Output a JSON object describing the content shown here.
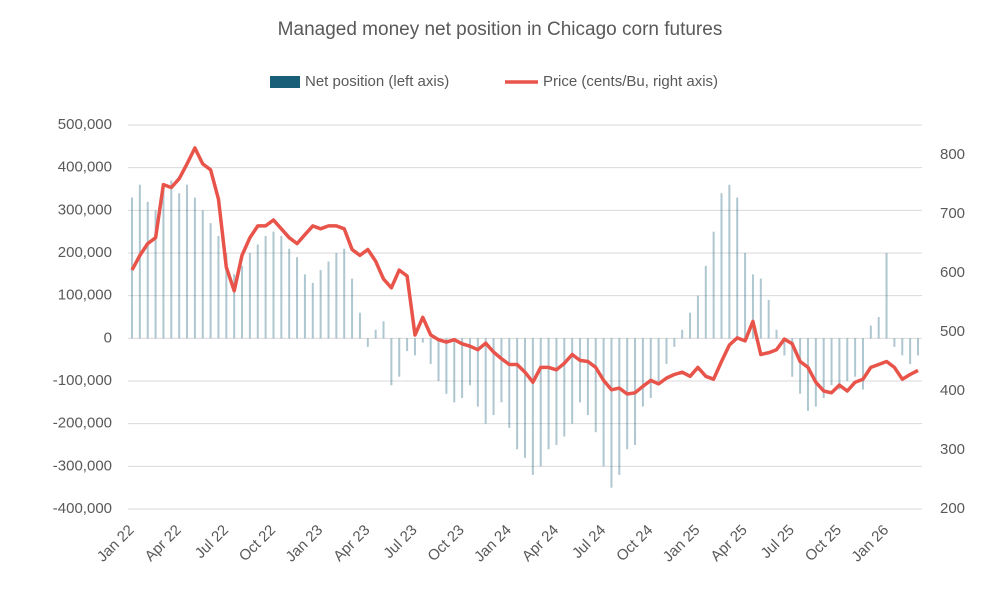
{
  "chart_data": {
    "type": "bar-line",
    "title": "Managed money net position in Chicago corn futures",
    "categories": [
      "Jan 22",
      null,
      null,
      null,
      null,
      null,
      "Apr 22",
      null,
      null,
      null,
      null,
      null,
      "Jul 22",
      null,
      null,
      null,
      null,
      null,
      "Oct 22",
      null,
      null,
      null,
      null,
      null,
      "Jan 23",
      null,
      null,
      null,
      null,
      null,
      "Apr 23",
      null,
      null,
      null,
      null,
      null,
      "Jul 23",
      null,
      null,
      null,
      null,
      null,
      "Oct 23",
      null,
      null,
      null,
      null,
      null,
      "Jan 24",
      null,
      null,
      null,
      null,
      null,
      "Apr 24",
      null,
      null,
      null,
      null,
      null,
      "Jul 24",
      null,
      null,
      null,
      null,
      null,
      "Oct 24",
      null,
      null,
      null,
      null,
      null,
      "Jan 25",
      null,
      null,
      null,
      null,
      null,
      "Apr 25",
      null,
      null,
      null,
      null,
      null,
      "Jul 25",
      null,
      null,
      null,
      null,
      null,
      "Oct 25",
      null,
      null,
      null,
      null,
      null,
      "Jan 26",
      null,
      null,
      null,
      null
    ],
    "series": [
      {
        "name": "Net position (left axis)",
        "color": "#1a5f78",
        "type": "bar",
        "values": [
          330000,
          360000,
          320000,
          300000,
          350000,
          370000,
          340000,
          360000,
          330000,
          300000,
          270000,
          240000,
          200000,
          150000,
          170000,
          200000,
          220000,
          240000,
          250000,
          240000,
          210000,
          190000,
          150000,
          130000,
          160000,
          180000,
          200000,
          210000,
          140000,
          60000,
          -20000,
          20000,
          40000,
          -110000,
          -90000,
          -30000,
          -40000,
          -10000,
          -60000,
          -100000,
          -130000,
          -150000,
          -140000,
          -110000,
          -160000,
          -200000,
          -180000,
          -150000,
          -210000,
          -260000,
          -280000,
          -320000,
          -300000,
          -260000,
          -250000,
          -230000,
          -200000,
          -150000,
          -180000,
          -220000,
          -300000,
          -350000,
          -320000,
          -260000,
          -250000,
          -160000,
          -140000,
          -100000,
          -60000,
          -20000,
          20000,
          60000,
          100000,
          170000,
          250000,
          340000,
          360000,
          330000,
          200000,
          150000,
          140000,
          90000,
          20000,
          -40000,
          -90000,
          -130000,
          -170000,
          -160000,
          -140000,
          -110000,
          -120000,
          -100000,
          -90000,
          -120000,
          30000,
          50000,
          200000,
          -20000,
          -40000,
          -60000,
          -40000
        ]
      },
      {
        "name": "Price (cents/Bu, right axis)",
        "color": "#e8534a",
        "type": "line",
        "axis": "y2",
        "values": [
          605,
          630,
          650,
          660,
          750,
          745,
          760,
          785,
          812,
          785,
          775,
          725,
          610,
          570,
          630,
          660,
          680,
          680,
          690,
          675,
          660,
          650,
          665,
          680,
          675,
          680,
          680,
          675,
          640,
          630,
          640,
          620,
          590,
          575,
          605,
          595,
          495,
          525,
          495,
          487,
          483,
          487,
          480,
          476,
          470,
          481,
          466,
          455,
          445,
          445,
          432,
          415,
          440,
          440,
          436,
          447,
          462,
          452,
          450,
          440,
          418,
          402,
          405,
          395,
          397,
          408,
          418,
          412,
          422,
          428,
          432,
          425,
          440,
          425,
          420,
          450,
          478,
          490,
          485,
          518,
          462,
          465,
          470,
          488,
          480,
          450,
          440,
          415,
          400,
          397,
          410,
          400,
          415,
          420,
          440,
          445,
          450,
          440,
          420,
          428,
          435
        ]
      }
    ],
    "ylim": [
      -400000,
      500000
    ],
    "yticks": [
      {
        "value": -400000,
        "label": "-400,000"
      },
      {
        "value": -300000,
        "label": "-300,000"
      },
      {
        "value": -200000,
        "label": "-200,000"
      },
      {
        "value": -100000,
        "label": "-100,000"
      },
      0,
      {
        "value": 100000,
        "label": "100,000"
      },
      {
        "value": 200000,
        "label": "200,000"
      },
      {
        "value": 300000,
        "label": "300,000"
      },
      {
        "value": 400000,
        "label": "400,000"
      },
      {
        "value": 500000,
        "label": "500,000"
      }
    ],
    "y2lim": [
      200,
      851
    ],
    "y2ticks": [
      200,
      300,
      400,
      500,
      600,
      700,
      800
    ],
    "grid": true,
    "legend": "top"
  }
}
